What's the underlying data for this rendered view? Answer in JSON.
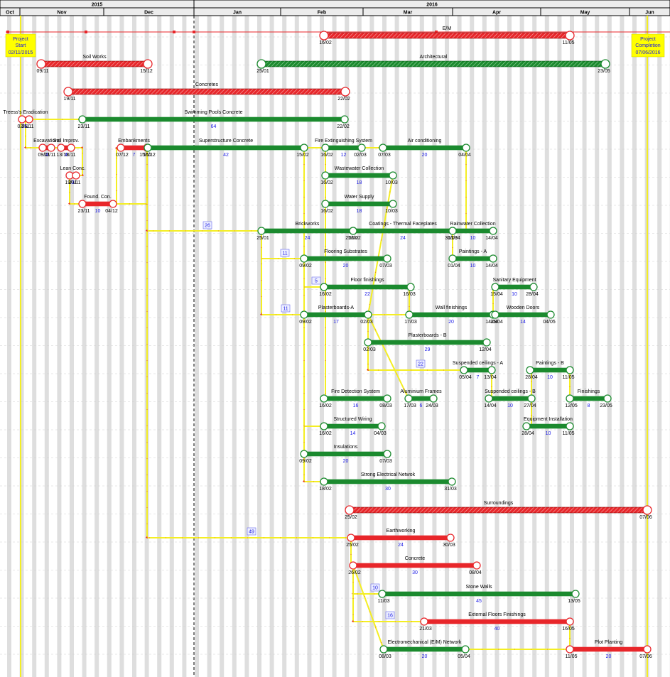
{
  "header": {
    "years": [
      {
        "label": "2015",
        "from": 0,
        "to": 273
      },
      {
        "label": "2016",
        "from": 273,
        "to": 943
      }
    ],
    "months": [
      {
        "label": "Oct",
        "from": 0,
        "to": 28
      },
      {
        "label": "Nov",
        "from": 28,
        "to": 146
      },
      {
        "label": "Dec",
        "from": 146,
        "to": 273
      },
      {
        "label": "Jan",
        "from": 273,
        "to": 395
      },
      {
        "label": "Feb",
        "from": 395,
        "to": 511
      },
      {
        "label": "Mar",
        "from": 511,
        "to": 637
      },
      {
        "label": "Apr",
        "from": 637,
        "to": 761
      },
      {
        "label": "May",
        "from": 761,
        "to": 886
      },
      {
        "label": "Jun",
        "from": 886,
        "to": 943
      }
    ]
  },
  "milestones": {
    "start": {
      "line1": "Project",
      "line2": "Start",
      "line3": "02/11/2015"
    },
    "end": {
      "line1": "Project",
      "line2": "Completion",
      "line3": "07/06/2016"
    }
  },
  "colors": {
    "critical": "#e8262a",
    "normal": "#1b8a2e",
    "summary": "#c8161c",
    "link": "#f4ee24",
    "arrow": "#e8262a",
    "float": "#1a1ae6"
  },
  "tasks": [
    {
      "name": "E/M",
      "start": "16/02",
      "end": "11/05",
      "kind": "summary"
    },
    {
      "name": "Soil Works",
      "start": "09/11",
      "end": "15/12",
      "kind": "summary"
    },
    {
      "name": "Architectural",
      "start": "25/01",
      "end": "23/05",
      "kind": "summary-green"
    },
    {
      "name": "Concretes",
      "start": "19/11",
      "end": "22/02",
      "kind": "summary"
    },
    {
      "name": "Treess's Eradication",
      "start": "02/11",
      "end": "06/11",
      "dur": "5",
      "kind": "critical"
    },
    {
      "name": "Swimming Pools Concrete",
      "start": "23/11",
      "end": "22/02",
      "dur": "64",
      "kind": "normal"
    },
    {
      "name": "Excavations",
      "start": "09/11",
      "end": "12/11",
      "dur": "4",
      "kind": "critical"
    },
    {
      "name": "Soil Improv.",
      "start": "13/11",
      "end": "18/11",
      "dur": "4",
      "kind": "critical"
    },
    {
      "name": "Lean Conc.",
      "start": "19/11",
      "end": "20/11",
      "dur": "2",
      "kind": "critical"
    },
    {
      "name": "Found. Con.",
      "start": "23/11",
      "end": "04/12",
      "dur": "10",
      "kind": "critical"
    },
    {
      "name": "Embankments",
      "start": "07/12",
      "end": "15/12",
      "dur": "7",
      "kind": "critical"
    },
    {
      "name": "Superstructure Concrete",
      "start": "16/12",
      "end": "15/02",
      "dur": "42",
      "kind": "normal"
    },
    {
      "name": "Fire Extinguishing System",
      "start": "16/02",
      "end": "02/03",
      "dur": "12",
      "kind": "normal"
    },
    {
      "name": "Air conditioning",
      "start": "07/03",
      "end": "04/04",
      "dur": "20",
      "kind": "normal"
    },
    {
      "name": "Wastewater Collection",
      "start": "16/02",
      "end": "10/03",
      "dur": "18",
      "kind": "normal"
    },
    {
      "name": "Water Supply",
      "start": "16/02",
      "end": "10/03",
      "dur": "18",
      "kind": "normal"
    },
    {
      "name": "Brickworks",
      "start": "25/01",
      "end": "25/02",
      "dur": "24",
      "kind": "normal"
    },
    {
      "name": "Coatings - Thermal Faceplates",
      "start": "26/02",
      "end": "31/03",
      "dur": "24",
      "kind": "normal"
    },
    {
      "name": "Rainwater Collection",
      "start": "01/04",
      "end": "14/04",
      "dur": "10",
      "kind": "normal"
    },
    {
      "name": "Paintings - A",
      "start": "01/04",
      "end": "14/04",
      "dur": "10",
      "kind": "normal"
    },
    {
      "name": "Flooring Substrates",
      "start": "09/02",
      "end": "07/03",
      "dur": "20",
      "kind": "normal"
    },
    {
      "name": "Floor finishings",
      "start": "16/02",
      "end": "16/03",
      "dur": "22",
      "kind": "normal"
    },
    {
      "name": "Sanitary Equipment",
      "start": "15/04",
      "end": "28/04",
      "dur": "10",
      "kind": "normal"
    },
    {
      "name": "Plasterboards-A",
      "start": "09/02",
      "end": "02/03",
      "dur": "17",
      "kind": "normal"
    },
    {
      "name": "Wall finishings",
      "start": "17/03",
      "end": "14/04",
      "dur": "20",
      "kind": "normal"
    },
    {
      "name": "Wooden Doors",
      "start": "15/04",
      "end": "04/05",
      "dur": "14",
      "kind": "normal"
    },
    {
      "name": "Plasterboards - B",
      "start": "02/03",
      "end": "12/04",
      "dur": "29",
      "kind": "normal"
    },
    {
      "name": "Suspended ceilings - A",
      "start": "05/04",
      "end": "13/04",
      "dur": "7",
      "kind": "normal"
    },
    {
      "name": "Paintings - B",
      "start": "28/04",
      "end": "11/05",
      "dur": "10",
      "kind": "normal"
    },
    {
      "name": "Fire Detection System",
      "start": "16/02",
      "end": "08/03",
      "dur": "16",
      "kind": "normal"
    },
    {
      "name": "Aluminium Frames",
      "start": "17/03",
      "end": "24/03",
      "dur": "6",
      "kind": "normal"
    },
    {
      "name": "Suspended ceilings - B",
      "start": "14/04",
      "end": "27/04",
      "dur": "10",
      "kind": "normal"
    },
    {
      "name": "Finishings",
      "start": "12/05",
      "end": "23/05",
      "dur": "8",
      "kind": "normal"
    },
    {
      "name": "Structured Wiring",
      "start": "16/02",
      "end": "04/03",
      "dur": "14",
      "kind": "normal"
    },
    {
      "name": "Equipment Installation",
      "start": "28/04",
      "end": "11/05",
      "dur": "10",
      "kind": "normal"
    },
    {
      "name": "Insulations",
      "start": "09/02",
      "end": "07/03",
      "dur": "20",
      "kind": "normal"
    },
    {
      "name": "Strong Electrical Netwok",
      "start": "18/02",
      "end": "31/03",
      "dur": "30",
      "kind": "normal"
    },
    {
      "name": "Surroundings",
      "start": "25/02",
      "end": "07/06",
      "kind": "summary"
    },
    {
      "name": "Earthworking",
      "start": "25/02",
      "end": "30/03",
      "dur": "24",
      "kind": "critical"
    },
    {
      "name": "Concrete",
      "start": "26/02",
      "end": "08/04",
      "dur": "30",
      "kind": "critical"
    },
    {
      "name": "Stone Walls",
      "start": "11/03",
      "end": "13/05",
      "dur": "45",
      "kind": "normal"
    },
    {
      "name": "External Floors Finishings",
      "start": "21/03",
      "end": "16/05",
      "dur": "40",
      "kind": "critical"
    },
    {
      "name": "Electromechanical (E/M) Network",
      "start": "08/03",
      "end": "05/04",
      "dur": "20",
      "kind": "normal"
    },
    {
      "name": "Plot Planting",
      "start": "11/05",
      "end": "07/06",
      "dur": "20",
      "kind": "critical"
    }
  ],
  "float_boxes": [
    "26",
    "11",
    "5",
    "11",
    "22",
    "49",
    "10",
    "16"
  ]
}
